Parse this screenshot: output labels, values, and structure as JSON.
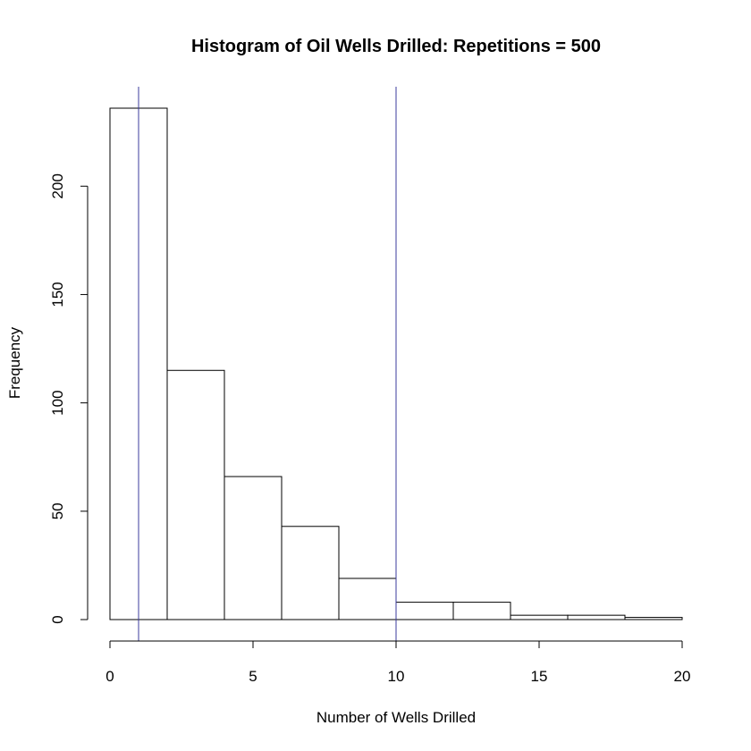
{
  "chart_data": {
    "type": "bar",
    "title": "Histogram of Oil Wells Drilled: Repetitions = 500",
    "xlabel": "Number of Wells Drilled",
    "ylabel": "Frequency",
    "bins": [
      {
        "x0": 0,
        "x1": 2,
        "count": 236
      },
      {
        "x0": 2,
        "x1": 4,
        "count": 115
      },
      {
        "x0": 4,
        "x1": 6,
        "count": 66
      },
      {
        "x0": 6,
        "x1": 8,
        "count": 43
      },
      {
        "x0": 8,
        "x1": 10,
        "count": 19
      },
      {
        "x0": 10,
        "x1": 12,
        "count": 8
      },
      {
        "x0": 12,
        "x1": 14,
        "count": 8
      },
      {
        "x0": 14,
        "x1": 16,
        "count": 2
      },
      {
        "x0": 16,
        "x1": 18,
        "count": 2
      },
      {
        "x0": 18,
        "x1": 20,
        "count": 1
      }
    ],
    "xlim": [
      0,
      20
    ],
    "ylim": [
      0,
      236
    ],
    "x_ticks": [
      0,
      5,
      10,
      15,
      20
    ],
    "y_ticks": [
      0,
      50,
      100,
      150,
      200
    ],
    "reference_lines": [
      {
        "x": 1,
        "color": "#3b3b9c"
      },
      {
        "x": 10,
        "color": "#3b3b9c"
      }
    ],
    "grid": false,
    "legend": "none",
    "bar_fill": "#ffffff",
    "bar_stroke": "#000000"
  }
}
